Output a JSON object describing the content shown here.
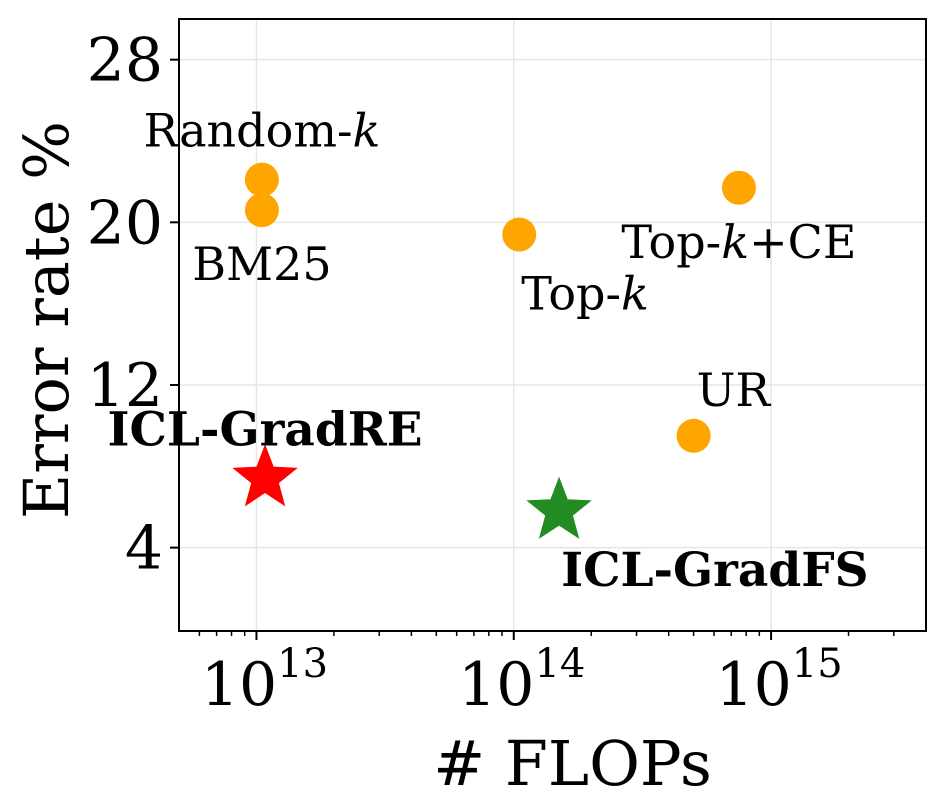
{
  "chart_data": {
    "type": "scatter",
    "title": "",
    "xlabel": "# FLOPs",
    "ylabel": "Error rate %",
    "x_scale": "log",
    "xlim": [
      5000000000000.0,
      4000000000000000.0
    ],
    "ylim": [
      -0.1,
      30
    ],
    "x_ticks": [
      {
        "value": 10000000000000.0,
        "base": "10",
        "exp": "13"
      },
      {
        "value": 100000000000000.0,
        "base": "10",
        "exp": "14"
      },
      {
        "value": 1000000000000000.0,
        "base": "10",
        "exp": "15"
      }
    ],
    "y_ticks": [
      4,
      12,
      20,
      28
    ],
    "grid": true,
    "points": [
      {
        "name": "Random-",
        "name_italic": "k",
        "name_rest": "",
        "x": 10500000000000.0,
        "y": 22.1,
        "marker": "circle",
        "color": "#FFA500",
        "bold": false,
        "label_pos": "above"
      },
      {
        "name": "BM25",
        "name_italic": "",
        "name_rest": "",
        "x": 10500000000000.0,
        "y": 20.6,
        "marker": "circle",
        "color": "#FFA500",
        "bold": false,
        "label_pos": "below"
      },
      {
        "name": "Top-",
        "name_italic": "k",
        "name_rest": "",
        "x": 105000000000000.0,
        "y": 19.4,
        "marker": "circle",
        "color": "#FFA500",
        "bold": false,
        "label_pos": "below-right"
      },
      {
        "name": "Top-",
        "name_italic": "k",
        "name_rest": "+CE",
        "x": 750000000000000.0,
        "y": 21.7,
        "marker": "circle",
        "color": "#FFA500",
        "bold": false,
        "label_pos": "below"
      },
      {
        "name": "UR",
        "name_italic": "",
        "name_rest": "",
        "x": 500000000000000.0,
        "y": 9.5,
        "marker": "circle",
        "color": "#FFA500",
        "bold": false,
        "label_pos": "above-right"
      },
      {
        "name": "ICL-GradRE",
        "name_italic": "",
        "name_rest": "",
        "x": 10800000000000.0,
        "y": 7.4,
        "marker": "star",
        "color": "#FF0000",
        "bold": true,
        "label_pos": "above"
      },
      {
        "name": "ICL-GradFS",
        "name_italic": "",
        "name_rest": "",
        "x": 150000000000000.0,
        "y": 5.8,
        "marker": "star",
        "color": "#228B22",
        "bold": true,
        "label_pos": "below-right"
      }
    ]
  }
}
